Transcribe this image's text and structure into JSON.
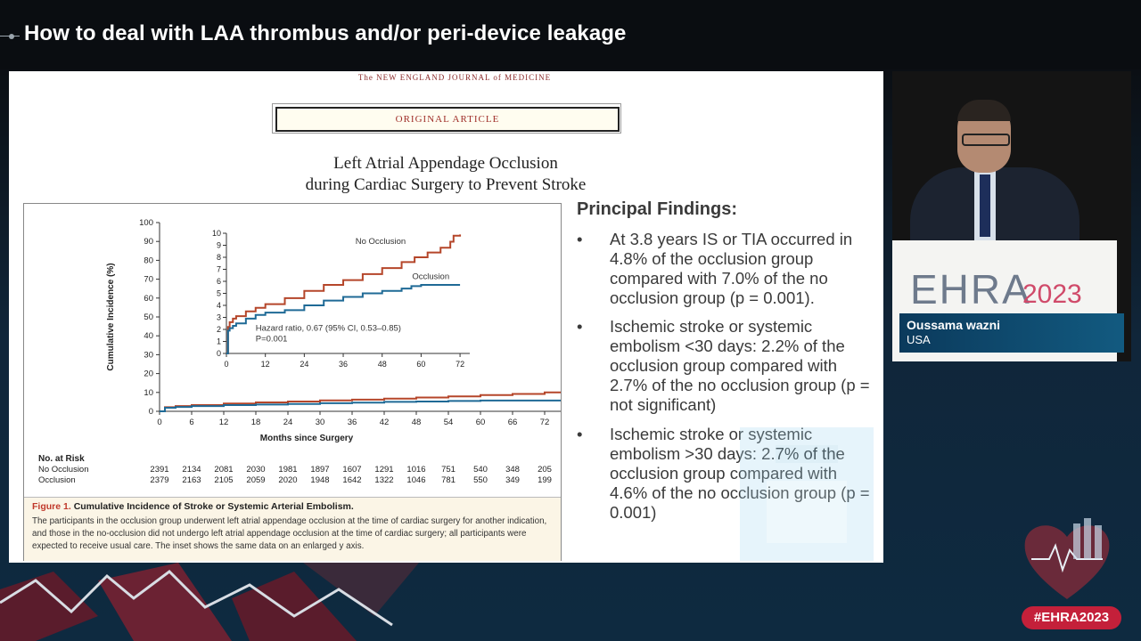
{
  "header": {
    "title": "How to deal with LAA thrombus and/or peri-device leakage"
  },
  "slide": {
    "journal": "The NEW ENGLAND JOURNAL of MEDICINE",
    "article_type": "ORIGINAL ARTICLE",
    "article_title_line1": "Left Atrial Appendage Occlusion",
    "article_title_line2": "during Cardiac Surgery to Prevent Stroke",
    "figure_label": "Figure 1.",
    "figure_title": "Cumulative Incidence of Stroke or Systemic Arterial Embolism.",
    "figure_caption": "The participants in the occlusion group underwent left atrial appendage occlusion at the time of cardiac surgery for another indication, and those in the no-occlusion did not undergo left atrial appendage occlusion at the time of cardiac surgery; all participants were expected to receive usual care. The inset shows the same data on an enlarged y axis.",
    "findings_title": "Principal Findings:",
    "findings": [
      "At 3.8  years IS or TIA  occurred in 4.8% of the occlusion group compared with 7.0% of the no occlusion group (p = 0.001).",
      "Ischemic stroke or systemic embolism <30 days: 2.2% of the occlusion group compared with 2.7% of the no occlusion group (p = not significant)",
      "Ischemic stroke or systemic embolism >30 days: 2.7% of the occlusion group compared with 4.6% of the no occlusion group (p = 0.001)"
    ],
    "bullet_char": "•"
  },
  "chart_data": [
    {
      "type": "line",
      "title": "",
      "xlabel": "Months since Surgery",
      "ylabel": "Cumulative Incidence (%)",
      "xlim": [
        0,
        75
      ],
      "ylim": [
        0,
        100
      ],
      "x_ticks": [
        0,
        6,
        12,
        18,
        24,
        30,
        36,
        42,
        48,
        54,
        60,
        66,
        72
      ],
      "y_ticks": [
        0,
        10,
        20,
        30,
        40,
        50,
        60,
        70,
        80,
        90,
        100
      ],
      "series": [
        {
          "name": "No Occlusion",
          "color": "#b5462a",
          "x": [
            0,
            1,
            3,
            6,
            12,
            18,
            24,
            30,
            36,
            42,
            48,
            54,
            60,
            66,
            72,
            75
          ],
          "y": [
            0,
            2.2,
            2.8,
            3.3,
            4.1,
            4.7,
            5.2,
            5.8,
            6.2,
            6.7,
            7.3,
            7.9,
            8.6,
            9.2,
            10,
            10
          ]
        },
        {
          "name": "Occlusion",
          "color": "#1f6a96",
          "x": [
            0,
            1,
            3,
            6,
            12,
            18,
            24,
            30,
            36,
            42,
            48,
            54,
            60,
            66,
            72,
            75
          ],
          "y": [
            0,
            1.9,
            2.3,
            2.8,
            3.3,
            3.6,
            3.9,
            4.3,
            4.6,
            5.0,
            5.2,
            5.5,
            5.7,
            5.7,
            5.7,
            5.7
          ]
        }
      ],
      "risk_table": {
        "title": "No. at Risk",
        "rows": [
          {
            "label": "No Occlusion",
            "values": [
              "2391",
              "2134",
              "2081",
              "2030",
              "1981",
              "1897",
              "1607",
              "1291",
              "1016",
              "751",
              "540",
              "348",
              "205"
            ]
          },
          {
            "label": "Occlusion",
            "values": [
              "2379",
              "2163",
              "2105",
              "2059",
              "2020",
              "1948",
              "1642",
              "1322",
              "1046",
              "781",
              "550",
              "349",
              "199"
            ]
          }
        ]
      }
    },
    {
      "type": "line",
      "title": "",
      "xlabel": "",
      "ylabel": "",
      "xlim": [
        0,
        75
      ],
      "ylim": [
        0,
        10
      ],
      "x_ticks": [
        0,
        12,
        24,
        36,
        48,
        60,
        72
      ],
      "y_ticks": [
        0,
        1,
        2,
        3,
        4,
        5,
        6,
        7,
        8,
        9,
        10
      ],
      "annotation_line1": "Hazard ratio, 0.67 (95% CI, 0.53–0.85)",
      "annotation_line2": "P=0.001",
      "series": [
        {
          "name": "No Occlusion",
          "color": "#b5462a",
          "x": [
            0,
            0.5,
            1,
            2,
            3,
            6,
            9,
            12,
            18,
            24,
            30,
            36,
            42,
            48,
            54,
            58,
            62,
            66,
            69,
            70,
            72
          ],
          "y": [
            0,
            2.2,
            2.6,
            2.9,
            3.1,
            3.5,
            3.8,
            4.1,
            4.6,
            5.2,
            5.7,
            6.1,
            6.6,
            7.1,
            7.6,
            8.0,
            8.4,
            8.8,
            9.3,
            9.8,
            9.9
          ]
        },
        {
          "name": "Occlusion",
          "color": "#1f6a96",
          "x": [
            0,
            0.5,
            1,
            2,
            3,
            6,
            9,
            12,
            18,
            24,
            30,
            36,
            42,
            48,
            54,
            57,
            60,
            66,
            72
          ],
          "y": [
            0,
            1.9,
            2.1,
            2.3,
            2.5,
            2.9,
            3.2,
            3.4,
            3.6,
            4.0,
            4.4,
            4.7,
            5.0,
            5.2,
            5.4,
            5.6,
            5.7,
            5.7,
            5.7
          ]
        }
      ]
    }
  ],
  "speaker": {
    "name": "Oussama wazni",
    "country": "USA"
  },
  "branding": {
    "logo_text": "EHRA",
    "logo_year": "2023",
    "hashtag": "#EHRA2023",
    "accent_color": "#c4203a"
  }
}
